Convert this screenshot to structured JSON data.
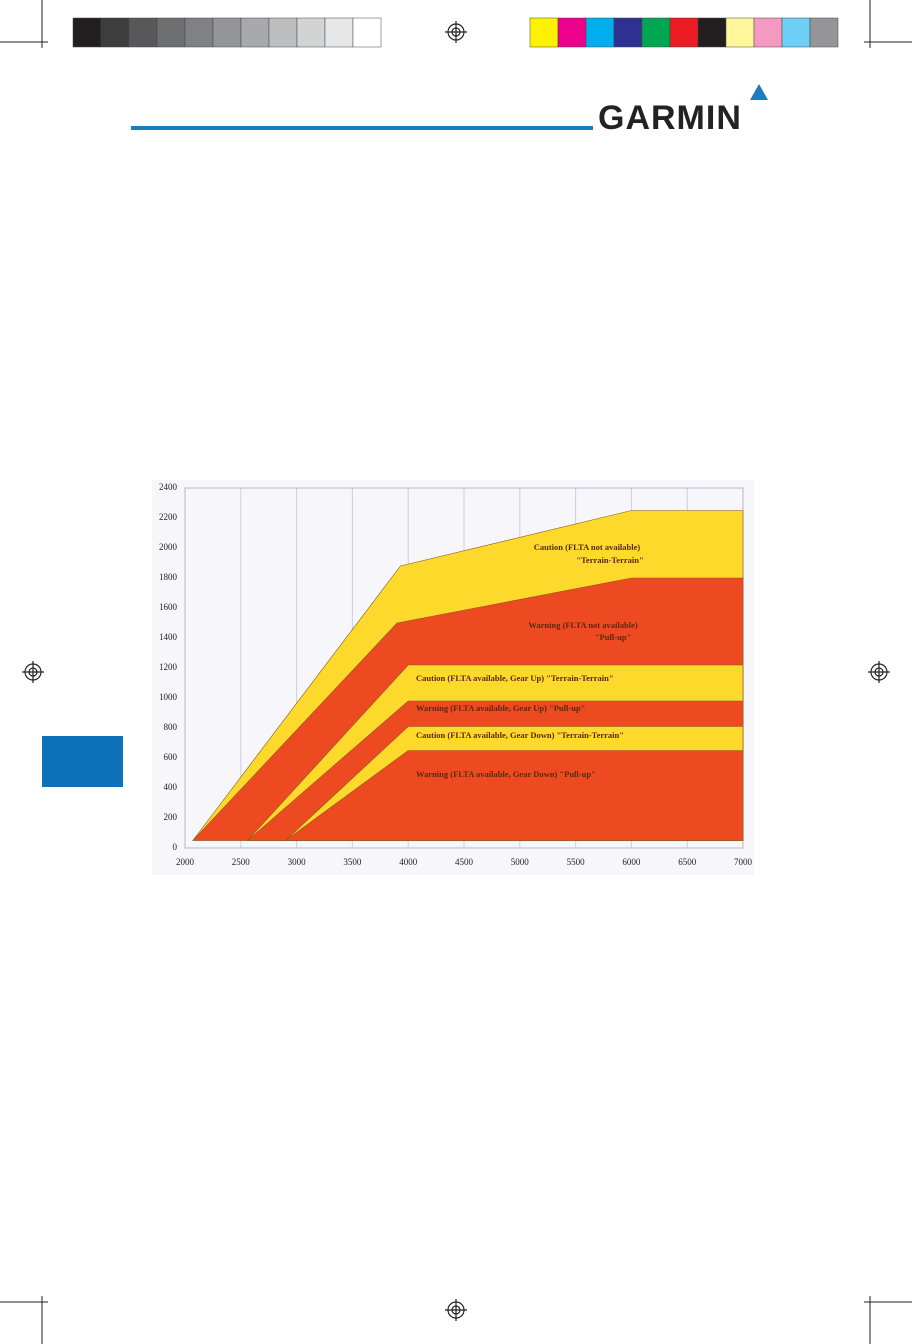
{
  "page": {
    "logo": "GARMIN"
  },
  "chart_data": {
    "type": "area",
    "xlim": [
      2000,
      7000
    ],
    "xticks": [
      2000,
      2500,
      3000,
      3500,
      4000,
      4500,
      5000,
      5500,
      6000,
      6500,
      7000
    ],
    "ylim": [
      0,
      2400
    ],
    "yticks": [
      0,
      200,
      400,
      600,
      800,
      1000,
      1200,
      1400,
      1600,
      1800,
      2000,
      2200,
      2400
    ],
    "grid": "x",
    "series": [
      {
        "label": [
          "Caution (FLTA not available)",
          "\"Terrain-Terrain\""
        ],
        "color": "#fcd92b",
        "x": [
          2070,
          3930,
          6000,
          7000,
          7000
        ],
        "values": [
          50,
          1880,
          2250,
          2250,
          50
        ]
      },
      {
        "label": [
          "Warning (FLTA not available)",
          "\"Pull-up\""
        ],
        "color": "#ee4a22",
        "x": [
          2070,
          3900,
          6000,
          7000,
          7000
        ],
        "values": [
          50,
          1500,
          1800,
          1800,
          50
        ]
      },
      {
        "label": [
          "Caution (FLTA available, Gear Up) \"Terrain-Terrain\""
        ],
        "color": "#fcd92b",
        "x": [
          2560,
          4000,
          7000,
          7000
        ],
        "values": [
          50,
          1220,
          1220,
          50
        ]
      },
      {
        "label": [
          "Warning (FLTA available, Gear Up) \"Pull-up\""
        ],
        "color": "#ee4a22",
        "x": [
          2560,
          4000,
          7000,
          7000
        ],
        "values": [
          50,
          980,
          980,
          50
        ]
      },
      {
        "label": [
          "Caution (FLTA available, Gear Down) \"Terrain-Terrain\""
        ],
        "color": "#fcd92b",
        "x": [
          2900,
          4000,
          7000,
          7000
        ],
        "values": [
          50,
          810,
          810,
          50
        ]
      },
      {
        "label": [
          "Warning (FLTA available, Gear Down)  \"Pull-up\""
        ],
        "color": "#ee4a22",
        "x": [
          2900,
          4000,
          7000,
          7000
        ],
        "values": [
          50,
          650,
          650,
          50
        ]
      }
    ]
  }
}
